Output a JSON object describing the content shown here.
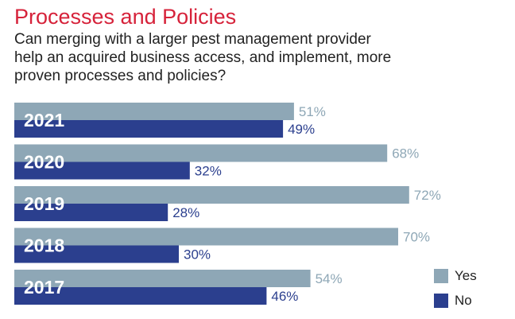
{
  "title": "Processes and Policies",
  "subtitle_lines": [
    "Can merging with a larger pest management provider",
    "help an acquired business access, and implement, more",
    "proven processes and policies?"
  ],
  "colors": {
    "yes": "#8ea7b6",
    "no": "#2b3f8e",
    "title": "#d6223a"
  },
  "chart_data": {
    "type": "bar",
    "orientation": "horizontal",
    "categories": [
      "2021",
      "2020",
      "2019",
      "2018",
      "2017"
    ],
    "series": [
      {
        "name": "Yes",
        "values": [
          51,
          68,
          72,
          70,
          54
        ],
        "labels": [
          "51%",
          "68%",
          "72%",
          "70%",
          "54%"
        ]
      },
      {
        "name": "No",
        "values": [
          49,
          32,
          28,
          30,
          46
        ],
        "labels": [
          "49%",
          "32%",
          "28%",
          "30%",
          "46%"
        ]
      }
    ],
    "xlim": [
      0,
      100
    ],
    "legend": "bottom-right",
    "grid": false
  }
}
